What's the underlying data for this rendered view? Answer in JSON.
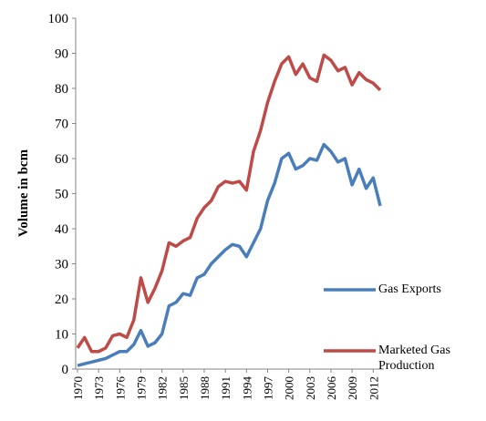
{
  "chart_data": {
    "type": "line",
    "y_label": "Volume in bcm",
    "x": [
      1970,
      1971,
      1972,
      1973,
      1974,
      1975,
      1976,
      1977,
      1978,
      1979,
      1980,
      1981,
      1982,
      1983,
      1984,
      1985,
      1986,
      1987,
      1988,
      1989,
      1990,
      1991,
      1992,
      1993,
      1994,
      1995,
      1996,
      1997,
      1998,
      1999,
      2000,
      2001,
      2002,
      2003,
      2004,
      2005,
      2006,
      2007,
      2008,
      2009,
      2010,
      2011,
      2012,
      2013
    ],
    "xlim": [
      1970,
      2013
    ],
    "xticks": [
      1970,
      1973,
      1976,
      1979,
      1982,
      1985,
      1988,
      1991,
      1994,
      1997,
      2000,
      2003,
      2006,
      2009,
      2012
    ],
    "ylim": [
      0,
      100
    ],
    "yticks": [
      0,
      10,
      20,
      30,
      40,
      50,
      60,
      70,
      80,
      90,
      100
    ],
    "series": [
      {
        "name": "Gas Exports",
        "color": "#4a7ebb",
        "values": [
          1,
          1.5,
          2,
          2.5,
          3,
          4,
          5,
          5,
          7,
          11,
          6.5,
          7.5,
          10,
          18,
          19,
          21.5,
          21,
          26,
          27,
          30,
          32,
          34,
          35.5,
          35,
          32,
          36,
          40,
          48,
          53,
          60,
          61.5,
          57,
          58,
          60,
          59.5,
          64,
          62,
          59,
          60,
          52.5,
          57,
          51.5,
          54.5,
          46.5
        ]
      },
      {
        "name": "Marketed Gas Production",
        "color": "#be4b48",
        "values": [
          6,
          9,
          5,
          5,
          6,
          9.5,
          10,
          9,
          14,
          26,
          19,
          23,
          28,
          36,
          35,
          36.5,
          37.5,
          43,
          46,
          48,
          52,
          53.5,
          53,
          53.5,
          51,
          62,
          68,
          76,
          82,
          87,
          89,
          84,
          87,
          83,
          82,
          89.5,
          88,
          85,
          86,
          81,
          84.5,
          82.5,
          81.5,
          79.5
        ]
      }
    ]
  }
}
